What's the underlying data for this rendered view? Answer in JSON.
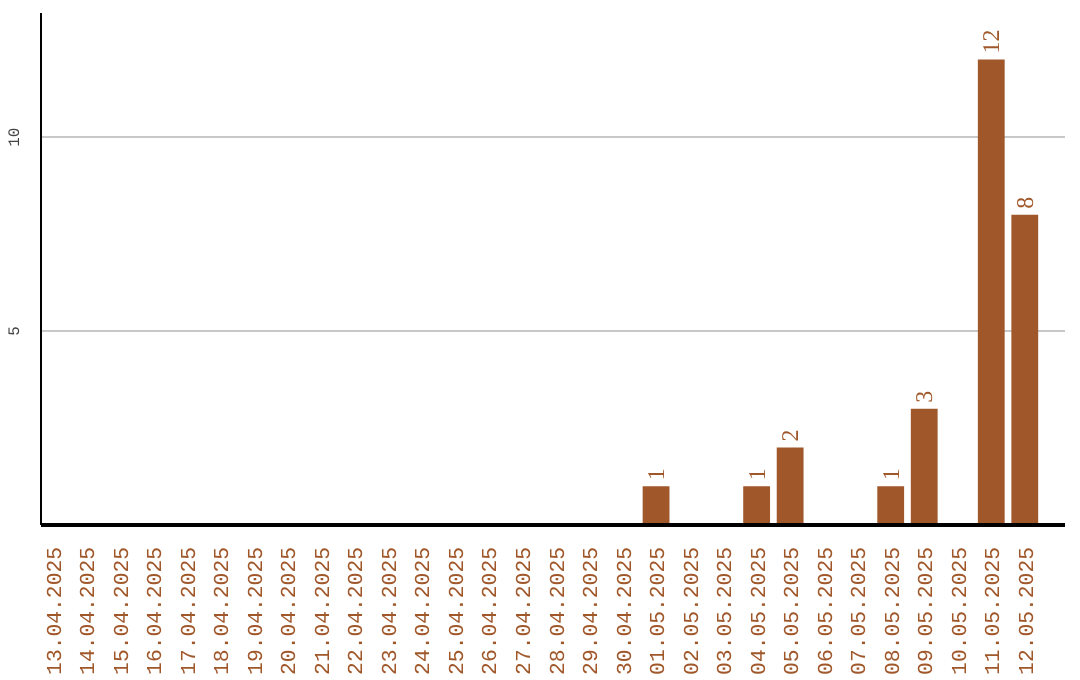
{
  "chart_data": {
    "type": "bar",
    "categories": [
      "13.04.2025",
      "14.04.2025",
      "15.04.2025",
      "16.04.2025",
      "17.04.2025",
      "18.04.2025",
      "19.04.2025",
      "20.04.2025",
      "21.04.2025",
      "22.04.2025",
      "23.04.2025",
      "24.04.2025",
      "25.04.2025",
      "26.04.2025",
      "27.04.2025",
      "28.04.2025",
      "29.04.2025",
      "30.04.2025",
      "01.05.2025",
      "02.05.2025",
      "03.05.2025",
      "04.05.2025",
      "05.05.2025",
      "06.05.2025",
      "07.05.2025",
      "08.05.2025",
      "09.05.2025",
      "10.05.2025",
      "11.05.2025",
      "12.05.2025"
    ],
    "values": [
      0,
      0,
      0,
      0,
      0,
      0,
      0,
      0,
      0,
      0,
      0,
      0,
      0,
      0,
      0,
      0,
      0,
      0,
      1,
      0,
      0,
      1,
      2,
      0,
      0,
      1,
      3,
      0,
      12,
      8
    ],
    "value_labels": [
      null,
      null,
      null,
      null,
      null,
      null,
      null,
      null,
      null,
      null,
      null,
      null,
      null,
      null,
      null,
      null,
      null,
      null,
      "1",
      null,
      null,
      "1",
      "2",
      null,
      null,
      "1",
      "3",
      null,
      "12",
      "8"
    ],
    "color": "#a0572a",
    "ylim": [
      0,
      13.2
    ],
    "yticks": [
      5,
      10
    ],
    "grid": "y"
  }
}
